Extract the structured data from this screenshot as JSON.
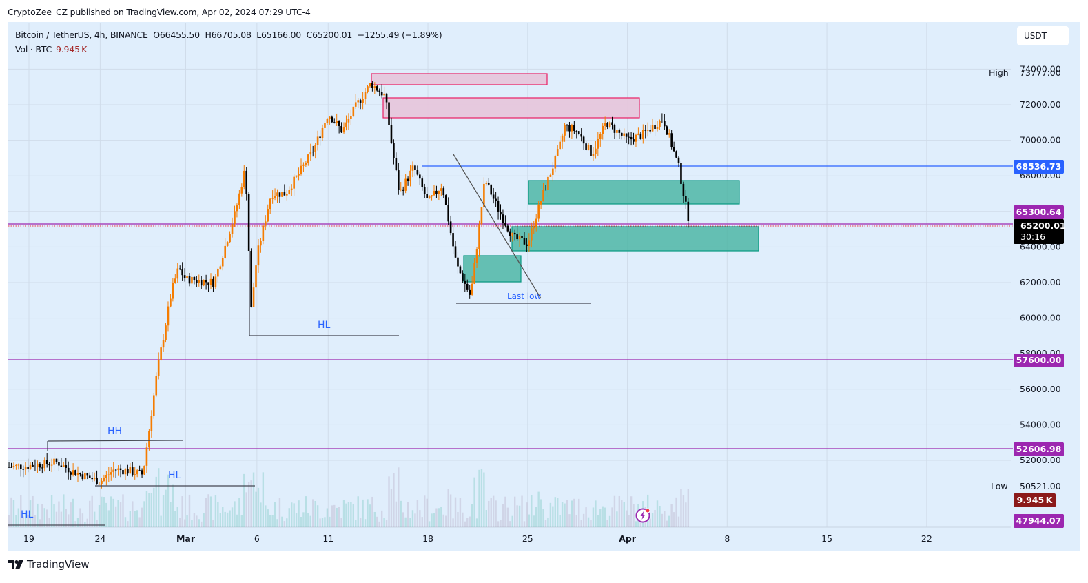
{
  "publisher": "CryptoZee_CZ published on TradingView.com, Apr 02, 2024 07:29 UTC-4",
  "legend": {
    "symbol": "Bitcoin / TetherUS, 4h, BINANCE",
    "open": "O66455.50",
    "high": "H66705.08",
    "low": "L65166.00",
    "close": "C65200.01",
    "change": "−1255.49 (−1.89%)",
    "vol_label": "Vol · BTC",
    "vol_value": "9.945 K"
  },
  "currency_button": "USDT",
  "footer_brand": "TradingView",
  "price_tags": {
    "high_label": "High",
    "high_value": "73777.00",
    "low_label": "Low",
    "low_value": "50521.00",
    "blue_line": "68536.73",
    "purple_1": "65300.64",
    "last_price": "65200.01",
    "countdown": "30:16",
    "purple_2": "57600.00",
    "purple_3": "52606.98",
    "volume_tag": "9.945 K",
    "purple_4": "47944.07"
  },
  "annotations": {
    "hh": "HH",
    "hl_1": "HL",
    "hl_2": "HL",
    "hl_3": "HL",
    "last_low": "Last low"
  },
  "colors": {
    "background": "#e0eefc",
    "up_candle": "#f57c00",
    "down_candle": "#000000",
    "supply_zone_fill": "#e6c6dc",
    "supply_zone_border": "#e91e63",
    "demand_zone_fill": "#4db6a6",
    "demand_zone_border": "#089981",
    "blue_line": "#2962ff",
    "purple_line": "#9c27b0",
    "volume_tag": "#8b1a1a"
  },
  "chart_data": {
    "type": "candlestick",
    "title": "Bitcoin / TetherUS, 4h, BINANCE",
    "xlabel": "",
    "ylabel": "USDT",
    "ylim": [
      47000,
      74500
    ],
    "y_ticks": [
      52000,
      54000,
      56000,
      58000,
      60000,
      62000,
      64000,
      66000,
      68000,
      70000,
      72000,
      74000
    ],
    "x_ticks": [
      "19",
      "24",
      "Mar",
      "6",
      "11",
      "18",
      "25",
      "Apr",
      "8",
      "15",
      "22"
    ],
    "last_ohlc": {
      "open": 66455.5,
      "high": 66705.08,
      "low": 65166.0,
      "close": 65200.01,
      "change": -1255.49,
      "change_pct": -1.89
    },
    "session_high": 73777.0,
    "session_low": 50521.0,
    "horizontal_levels": [
      {
        "price": 68536.73,
        "color": "#2962ff"
      },
      {
        "price": 65300.64,
        "color": "#9c27b0"
      },
      {
        "price": 57600.0,
        "color": "#9c27b0"
      },
      {
        "price": 52606.98,
        "color": "#9c27b0"
      },
      {
        "price": 47944.07,
        "color": "#9c27b0"
      }
    ],
    "zones": [
      {
        "type": "supply",
        "from": "Mar 14",
        "to": "Mar 26",
        "top": 73600,
        "bottom": 72950
      },
      {
        "type": "supply",
        "from": "Mar 15",
        "to": "Apr 1",
        "top": 72400,
        "bottom": 71270
      },
      {
        "type": "demand",
        "from": "Mar 25",
        "to": "Apr 8",
        "top": 67780,
        "bottom": 66450
      },
      {
        "type": "demand",
        "from": "Mar 23",
        "to": "Apr 9",
        "top": 65200,
        "bottom": 63800
      },
      {
        "type": "demand",
        "from": "Mar 20",
        "to": "Mar 24",
        "top": 63500,
        "bottom": 61950
      }
    ],
    "key_points": [
      {
        "label": "HH",
        "date": "Feb 21",
        "price": 53000
      },
      {
        "label": "HL",
        "date": "Feb 23",
        "price": 50600
      },
      {
        "label": "HL",
        "date": "Mar 5",
        "price": 59000
      },
      {
        "label": "Last low",
        "date": "Mar 20",
        "price": 60800
      },
      {
        "label": "High",
        "date": "Mar 14",
        "price": 73777
      }
    ],
    "approx_path": [
      {
        "date": "Feb 17",
        "price": 51500
      },
      {
        "date": "Feb 21",
        "price": 51800
      },
      {
        "date": "Feb 24",
        "price": 50800
      },
      {
        "date": "Feb 26",
        "price": 51500
      },
      {
        "date": "Feb 28",
        "price": 57000
      },
      {
        "date": "Feb 29",
        "price": 61500
      },
      {
        "date": "Mar 3",
        "price": 62000
      },
      {
        "date": "Mar 5",
        "price": 68500
      },
      {
        "date": "Mar 5b",
        "price": 59000
      },
      {
        "date": "Mar 8",
        "price": 67500
      },
      {
        "date": "Mar 11",
        "price": 71500
      },
      {
        "date": "Mar 14",
        "price": 73500
      },
      {
        "date": "Mar 16",
        "price": 67500
      },
      {
        "date": "Mar 19",
        "price": 63000
      },
      {
        "date": "Mar 20",
        "price": 61500
      },
      {
        "date": "Mar 21",
        "price": 67500
      },
      {
        "date": "Mar 23",
        "price": 64000
      },
      {
        "date": "Mar 25",
        "price": 70500
      },
      {
        "date": "Mar 28",
        "price": 71000
      },
      {
        "date": "Mar 31",
        "price": 71200
      },
      {
        "date": "Apr 1",
        "price": 69500
      },
      {
        "date": "Apr 2",
        "price": 65200
      }
    ]
  }
}
